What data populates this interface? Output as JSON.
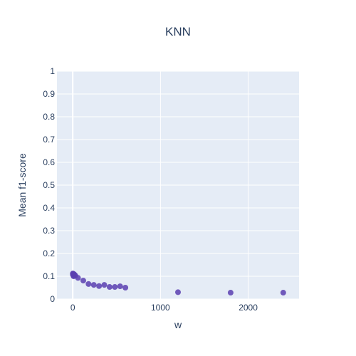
{
  "chart_data": {
    "type": "scatter",
    "title": "KNN",
    "xlabel": "w",
    "ylabel": "Mean f1-score",
    "xlim": [
      -180,
      2580
    ],
    "ylim": [
      0,
      1
    ],
    "xticks": [
      0,
      1000,
      2000
    ],
    "yticks": [
      0,
      0.1,
      0.2,
      0.3,
      0.4,
      0.5,
      0.6,
      0.7,
      0.8,
      0.9,
      1
    ],
    "grid": true,
    "legend": "none",
    "marker_color": "#5b3fb0",
    "background_color": "#e5ecf6",
    "points": [
      {
        "x": 1,
        "y": 0.112
      },
      {
        "x": 2,
        "y": 0.108
      },
      {
        "x": 3,
        "y": 0.106
      },
      {
        "x": 5,
        "y": 0.111
      },
      {
        "x": 8,
        "y": 0.104
      },
      {
        "x": 10,
        "y": 0.1
      },
      {
        "x": 15,
        "y": 0.109
      },
      {
        "x": 20,
        "y": 0.106
      },
      {
        "x": 30,
        "y": 0.103
      },
      {
        "x": 60,
        "y": 0.093
      },
      {
        "x": 120,
        "y": 0.081
      },
      {
        "x": 180,
        "y": 0.066
      },
      {
        "x": 240,
        "y": 0.062
      },
      {
        "x": 300,
        "y": 0.057
      },
      {
        "x": 360,
        "y": 0.062
      },
      {
        "x": 420,
        "y": 0.053
      },
      {
        "x": 480,
        "y": 0.053
      },
      {
        "x": 540,
        "y": 0.056
      },
      {
        "x": 600,
        "y": 0.05
      },
      {
        "x": 1200,
        "y": 0.03
      },
      {
        "x": 1800,
        "y": 0.028
      },
      {
        "x": 2400,
        "y": 0.028
      }
    ]
  }
}
